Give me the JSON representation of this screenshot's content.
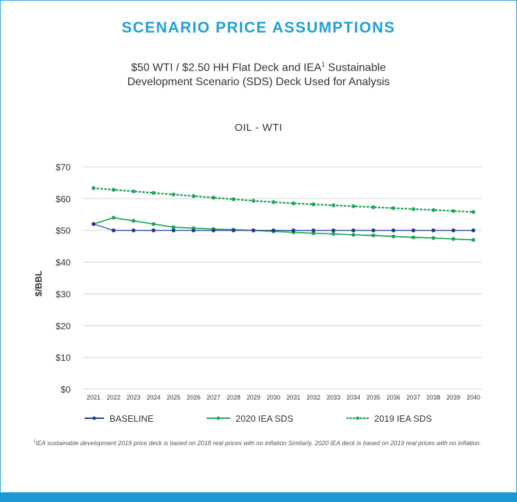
{
  "header": {
    "title": "SCENARIO PRICE ASSUMPTIONS",
    "subtitle_part1": "$50 WTI / $2.50 HH Flat Deck and IEA",
    "subtitle_sup": "1",
    "subtitle_part2": " Sustainable",
    "subtitle_line2": "Development Scenario (SDS) Deck Used for Analysis"
  },
  "colors": {
    "title": "#20a0d8",
    "baseline": "#1f3a93",
    "iea2020": "#1fa65a",
    "iea2019": "#1fa65a",
    "gridline": "#d0d0d0",
    "accent_bar": "#1a9ad6"
  },
  "chart_data": {
    "type": "line",
    "title": "OIL - WTI",
    "xlabel": "",
    "ylabel": "$/BBL",
    "ylim": [
      0,
      70
    ],
    "yticks": [
      0,
      10,
      20,
      30,
      40,
      50,
      60,
      70
    ],
    "ytick_labels": [
      "$0",
      "$10",
      "$20",
      "$30",
      "$40",
      "$50",
      "$60",
      "$70"
    ],
    "grid": true,
    "legend_position": "bottom",
    "x": [
      "2021",
      "2022",
      "2023",
      "2024",
      "2025",
      "2026",
      "2027",
      "2028",
      "2029",
      "2030",
      "2031",
      "2032",
      "2033",
      "2034",
      "2035",
      "2036",
      "2037",
      "2038",
      "2039",
      "2040"
    ],
    "series": [
      {
        "name": "BASELINE",
        "style": "solid-thin",
        "values": [
          52,
          50,
          50,
          50,
          50,
          50,
          50,
          50,
          50,
          50,
          50,
          50,
          50,
          50,
          50,
          50,
          50,
          50,
          50,
          50
        ]
      },
      {
        "name": "2020 IEA SDS",
        "style": "solid",
        "values": [
          52,
          54,
          53,
          52,
          51,
          50.7,
          50.4,
          50.2,
          50,
          49.7,
          49.4,
          49.1,
          48.9,
          48.6,
          48.4,
          48.1,
          47.8,
          47.6,
          47.3,
          47
        ]
      },
      {
        "name": "2019 IEA SDS",
        "style": "dotted",
        "values": [
          63.3,
          62.8,
          62.3,
          61.8,
          61.3,
          60.8,
          60.3,
          59.8,
          59.3,
          58.9,
          58.5,
          58.2,
          57.9,
          57.6,
          57.3,
          57,
          56.7,
          56.4,
          56.1,
          55.8
        ]
      }
    ]
  },
  "footnote": {
    "sup": "1",
    "text": "IEA sustainable development 2019 price deck is based on 2018 real prices with no inflation Similarly, 2020 IEA deck is based on 2019 real prices with no inflation."
  }
}
